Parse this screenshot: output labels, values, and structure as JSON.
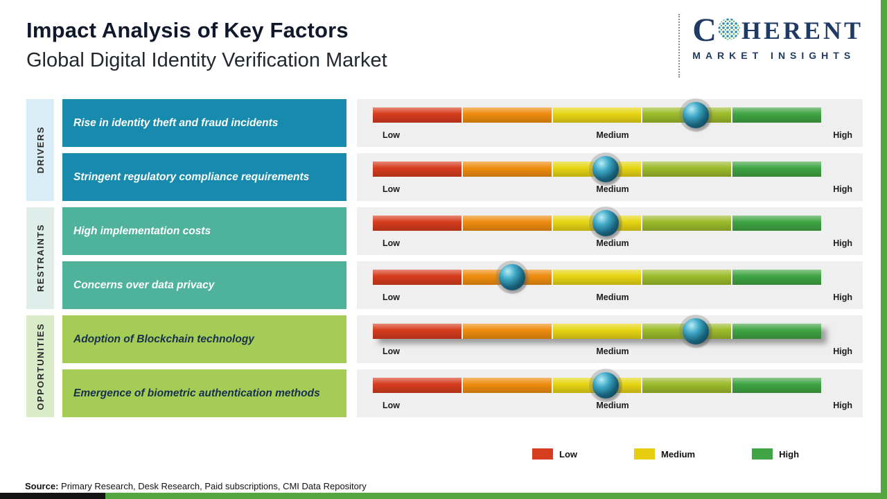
{
  "page": {
    "title": "Impact Analysis of Key Factors",
    "subtitle": "Global Digital Identity Verification Market"
  },
  "logo": {
    "brand_c": "C",
    "brand_rest": "HERENT",
    "tagline": "MARKET INSIGHTS",
    "color": "#1f3a63"
  },
  "chart_data": {
    "type": "impact-slider",
    "scale": [
      "Low",
      "Medium",
      "High"
    ],
    "segment_colors": [
      "#d63c1e",
      "#ef8c0f",
      "#e6d513",
      "#9dbb2b",
      "#3fa443"
    ],
    "groups": [
      {
        "name": "DRIVERS",
        "sidebar_color": "#d9edf6",
        "box_color": "#178aad",
        "text_color": "#ffffff",
        "factors": [
          {
            "label": "Rise in identity theft and fraud incidents",
            "impact_percent": 72,
            "impact_level": "Medium-High"
          },
          {
            "label": "Stringent regulatory compliance requirements",
            "impact_percent": 52,
            "impact_level": "Medium"
          }
        ]
      },
      {
        "name": "RESTRAINTS",
        "sidebar_color": "#dfeeea",
        "box_color": "#4fb39c",
        "text_color": "#ffffff",
        "factors": [
          {
            "label": "High implementation costs",
            "impact_percent": 52,
            "impact_level": "Medium"
          },
          {
            "label": "Concerns over data privacy",
            "impact_percent": 31,
            "impact_level": "Low-Medium"
          }
        ]
      },
      {
        "name": "OPPORTUNITIES",
        "sidebar_color": "#daebc8",
        "box_color": "#a5cd55",
        "text_color": "#17304f",
        "factors": [
          {
            "label": "Adoption of Blockchain technology",
            "impact_percent": 72,
            "impact_level": "Medium-High"
          },
          {
            "label": "Emergence of biometric authentication methods",
            "impact_percent": 52,
            "impact_level": "Medium"
          }
        ]
      }
    ]
  },
  "legend": [
    {
      "label": "Low",
      "color": "#d63c1e"
    },
    {
      "label": "Medium",
      "color": "#e7cd0f"
    },
    {
      "label": "High",
      "color": "#3fa443"
    }
  ],
  "source": {
    "prefix": "Source:",
    "text": " Primary Research, Desk Research, Paid subscriptions, CMI Data Repository"
  }
}
